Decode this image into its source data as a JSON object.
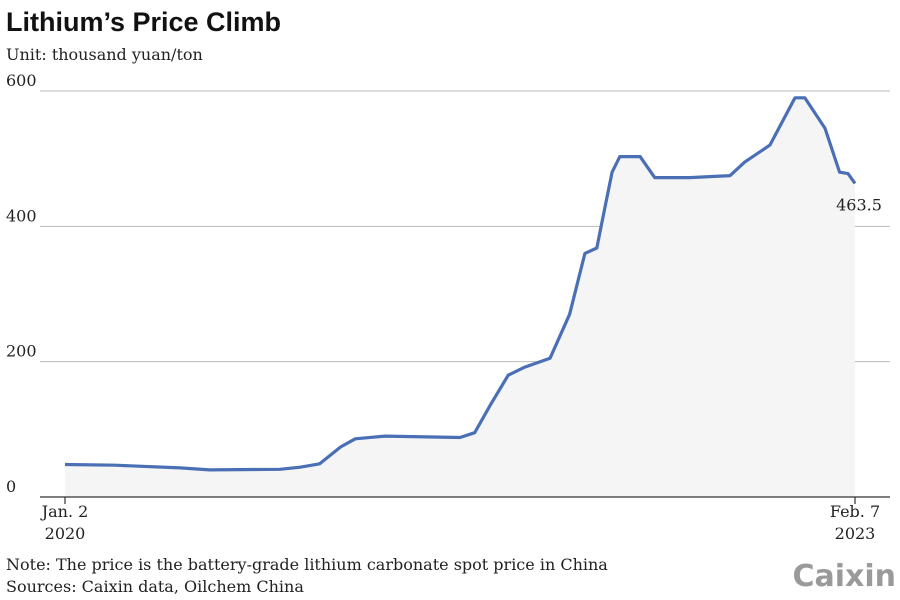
{
  "chart_data": {
    "type": "line",
    "title": "Lithium’s Price Climb",
    "subtitle": "Unit: thousand yuan/ton",
    "note": "Note: The price is the battery-grade lithium carbonate spot price in China",
    "source": "Sources: Caixin data, Oilchem China",
    "logo": "Caixin",
    "x": [
      "2020-01-02",
      "2020-03-14",
      "2020-06-15",
      "2020-07-27",
      "2020-11-05",
      "2020-12-04",
      "2021-01-01",
      "2021-01-31",
      "2021-02-21",
      "2021-04-05",
      "2021-07-21",
      "2021-08-11",
      "2021-09-02",
      "2021-09-28",
      "2021-10-22",
      "2021-11-27",
      "2021-12-25",
      "2022-01-16",
      "2022-02-02",
      "2022-02-14",
      "2022-02-24",
      "2022-03-07",
      "2022-04-05",
      "2022-04-26",
      "2022-06-15",
      "2022-08-12",
      "2022-09-02",
      "2022-10-08",
      "2022-11-13",
      "2022-11-27",
      "2022-12-26",
      "2023-01-16",
      "2023-01-28",
      "2023-02-07"
    ],
    "values": [
      48,
      47,
      43,
      40,
      41,
      44,
      49,
      74,
      86,
      90,
      88,
      95,
      135,
      180,
      192,
      205,
      270,
      360,
      368,
      430,
      480,
      503,
      503,
      472,
      472,
      475,
      495,
      520,
      590,
      590,
      545,
      480,
      478,
      463.5
    ],
    "value_labels": [
      null,
      null,
      null,
      null,
      null,
      null,
      null,
      null,
      null,
      null,
      null,
      null,
      null,
      null,
      null,
      null,
      null,
      null,
      null,
      null,
      null,
      null,
      null,
      null,
      null,
      null,
      null,
      null,
      null,
      null,
      null,
      null,
      null,
      "463.5"
    ],
    "color": "#4a6fb5",
    "area_color": "#f5f5f6",
    "xlim": [
      "2020-01-02",
      "2023-02-07"
    ],
    "xticks": [
      {
        "value": "2020-01-02",
        "label": "Jan. 2\n2020"
      },
      {
        "value": "2023-02-07",
        "label": "Feb. 7\n2023"
      }
    ],
    "ylim": [
      0,
      600
    ],
    "yticks": [
      0,
      200,
      400,
      600
    ],
    "grid": true
  }
}
